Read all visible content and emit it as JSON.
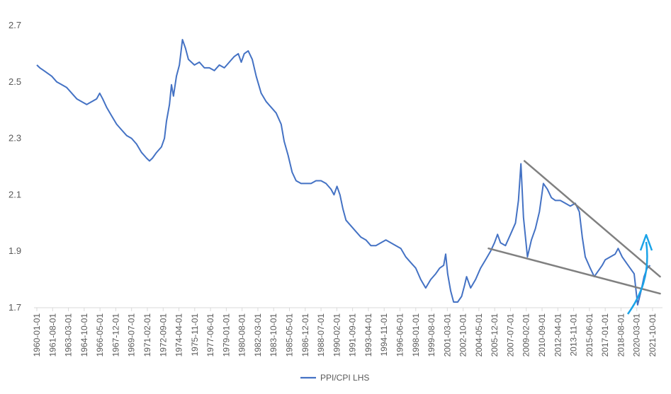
{
  "chart_data": {
    "type": "line",
    "title": "",
    "xlabel": "",
    "ylabel": "",
    "ylim": [
      1.7,
      2.7
    ],
    "yticks": [
      1.7,
      1.9,
      2.1,
      2.3,
      2.5,
      2.7
    ],
    "ytick_labels": [
      "1.7",
      "1.9",
      "2.1",
      "2.3",
      "2.5",
      "2.7"
    ],
    "x_tick_labels": [
      "1960-01-01",
      "1961-08-01",
      "1963-03-01",
      "1964-10-01",
      "1966-05-01",
      "1967-12-01",
      "1969-07-01",
      "1971-02-01",
      "1972-09-01",
      "1974-04-01",
      "1975-11-01",
      "1977-06-01",
      "1979-01-01",
      "1980-08-01",
      "1982-03-01",
      "1983-10-01",
      "1985-05-01",
      "1986-12-01",
      "1988-07-01",
      "1990-02-01",
      "1991-09-01",
      "1993-04-01",
      "1994-11-01",
      "1996-06-01",
      "1998-01-01",
      "1999-08-01",
      "2001-03-01",
      "2002-10-01",
      "2004-05-01",
      "2005-12-01",
      "2007-07-01",
      "2009-02-01",
      "2010-09-01",
      "2012-04-01",
      "2013-11-01",
      "2015-06-01",
      "2017-01-01",
      "2018-08-01",
      "2020-03-01",
      "2021-10-01"
    ],
    "grid": false,
    "legend_position": "bottom",
    "series": [
      {
        "name": "PPI/CPI LHS",
        "color": "#4472c4",
        "points": [
          [
            1960.0,
            2.56
          ],
          [
            1960.3,
            2.55
          ],
          [
            1960.7,
            2.54
          ],
          [
            1961.1,
            2.53
          ],
          [
            1961.5,
            2.52
          ],
          [
            1962.0,
            2.5
          ],
          [
            1962.5,
            2.49
          ],
          [
            1963.0,
            2.48
          ],
          [
            1963.5,
            2.46
          ],
          [
            1964.0,
            2.44
          ],
          [
            1964.5,
            2.43
          ],
          [
            1965.0,
            2.42
          ],
          [
            1965.5,
            2.43
          ],
          [
            1966.0,
            2.44
          ],
          [
            1966.3,
            2.46
          ],
          [
            1966.6,
            2.44
          ],
          [
            1967.0,
            2.41
          ],
          [
            1967.5,
            2.38
          ],
          [
            1968.0,
            2.35
          ],
          [
            1968.5,
            2.33
          ],
          [
            1969.0,
            2.31
          ],
          [
            1969.5,
            2.3
          ],
          [
            1970.0,
            2.28
          ],
          [
            1970.5,
            2.25
          ],
          [
            1971.0,
            2.23
          ],
          [
            1971.3,
            2.22
          ],
          [
            1971.6,
            2.23
          ],
          [
            1972.0,
            2.25
          ],
          [
            1972.5,
            2.27
          ],
          [
            1972.8,
            2.3
          ],
          [
            1973.0,
            2.36
          ],
          [
            1973.3,
            2.42
          ],
          [
            1973.5,
            2.49
          ],
          [
            1973.7,
            2.45
          ],
          [
            1974.0,
            2.52
          ],
          [
            1974.3,
            2.56
          ],
          [
            1974.6,
            2.65
          ],
          [
            1974.9,
            2.62
          ],
          [
            1975.2,
            2.58
          ],
          [
            1975.8,
            2.56
          ],
          [
            1976.3,
            2.57
          ],
          [
            1976.8,
            2.55
          ],
          [
            1977.3,
            2.55
          ],
          [
            1977.8,
            2.54
          ],
          [
            1978.3,
            2.56
          ],
          [
            1978.8,
            2.55
          ],
          [
            1979.3,
            2.57
          ],
          [
            1979.8,
            2.59
          ],
          [
            1980.2,
            2.6
          ],
          [
            1980.5,
            2.57
          ],
          [
            1980.8,
            2.6
          ],
          [
            1981.2,
            2.61
          ],
          [
            1981.6,
            2.58
          ],
          [
            1982.0,
            2.52
          ],
          [
            1982.5,
            2.46
          ],
          [
            1983.0,
            2.43
          ],
          [
            1983.5,
            2.41
          ],
          [
            1984.0,
            2.39
          ],
          [
            1984.5,
            2.35
          ],
          [
            1984.8,
            2.29
          ],
          [
            1985.2,
            2.24
          ],
          [
            1985.6,
            2.18
          ],
          [
            1986.0,
            2.15
          ],
          [
            1986.5,
            2.14
          ],
          [
            1987.0,
            2.14
          ],
          [
            1987.5,
            2.14
          ],
          [
            1988.0,
            2.15
          ],
          [
            1988.5,
            2.15
          ],
          [
            1989.0,
            2.14
          ],
          [
            1989.5,
            2.12
          ],
          [
            1989.8,
            2.1
          ],
          [
            1990.1,
            2.13
          ],
          [
            1990.4,
            2.1
          ],
          [
            1990.7,
            2.05
          ],
          [
            1991.0,
            2.01
          ],
          [
            1991.5,
            1.99
          ],
          [
            1992.0,
            1.97
          ],
          [
            1992.5,
            1.95
          ],
          [
            1993.0,
            1.94
          ],
          [
            1993.5,
            1.92
          ],
          [
            1994.0,
            1.92
          ],
          [
            1994.5,
            1.93
          ],
          [
            1995.0,
            1.94
          ],
          [
            1995.5,
            1.93
          ],
          [
            1996.0,
            1.92
          ],
          [
            1996.5,
            1.91
          ],
          [
            1997.0,
            1.88
          ],
          [
            1997.5,
            1.86
          ],
          [
            1998.0,
            1.84
          ],
          [
            1998.5,
            1.8
          ],
          [
            1999.0,
            1.77
          ],
          [
            1999.5,
            1.8
          ],
          [
            2000.0,
            1.82
          ],
          [
            2000.4,
            1.84
          ],
          [
            2000.8,
            1.85
          ],
          [
            2001.0,
            1.89
          ],
          [
            2001.2,
            1.82
          ],
          [
            2001.5,
            1.76
          ],
          [
            2001.8,
            1.72
          ],
          [
            2002.2,
            1.72
          ],
          [
            2002.6,
            1.74
          ],
          [
            2002.9,
            1.78
          ],
          [
            2003.1,
            1.81
          ],
          [
            2003.5,
            1.77
          ],
          [
            2004.0,
            1.8
          ],
          [
            2004.5,
            1.84
          ],
          [
            2005.0,
            1.87
          ],
          [
            2005.5,
            1.9
          ],
          [
            2005.9,
            1.93
          ],
          [
            2006.2,
            1.96
          ],
          [
            2006.5,
            1.93
          ],
          [
            2007.0,
            1.92
          ],
          [
            2007.5,
            1.96
          ],
          [
            2008.0,
            2.0
          ],
          [
            2008.3,
            2.08
          ],
          [
            2008.55,
            2.21
          ],
          [
            2008.8,
            2.02
          ],
          [
            2009.2,
            1.88
          ],
          [
            2009.6,
            1.94
          ],
          [
            2010.0,
            1.98
          ],
          [
            2010.4,
            2.04
          ],
          [
            2010.8,
            2.14
          ],
          [
            2011.2,
            2.12
          ],
          [
            2011.6,
            2.09
          ],
          [
            2012.0,
            2.08
          ],
          [
            2012.5,
            2.08
          ],
          [
            2013.0,
            2.07
          ],
          [
            2013.5,
            2.06
          ],
          [
            2014.0,
            2.07
          ],
          [
            2014.4,
            2.04
          ],
          [
            2014.7,
            1.95
          ],
          [
            2015.0,
            1.88
          ],
          [
            2015.5,
            1.84
          ],
          [
            2015.9,
            1.81
          ],
          [
            2016.3,
            1.83
          ],
          [
            2016.7,
            1.85
          ],
          [
            2017.0,
            1.87
          ],
          [
            2017.5,
            1.88
          ],
          [
            2018.0,
            1.89
          ],
          [
            2018.3,
            1.91
          ],
          [
            2018.7,
            1.88
          ],
          [
            2019.1,
            1.86
          ],
          [
            2019.5,
            1.84
          ],
          [
            2019.9,
            1.82
          ],
          [
            2020.25,
            1.71
          ],
          [
            2020.6,
            1.76
          ],
          [
            2020.9,
            1.81
          ],
          [
            2021.2,
            1.84
          ],
          [
            2021.5,
            1.85
          ]
        ]
      }
    ],
    "annotations": [
      {
        "type": "trendline",
        "color": "#808080",
        "from": [
          2008.9,
          2.22
        ],
        "to": [
          2022.5,
          1.81
        ]
      },
      {
        "type": "trendline",
        "color": "#808080",
        "from": [
          2005.3,
          1.91
        ],
        "to": [
          2022.5,
          1.75
        ]
      },
      {
        "type": "arrow",
        "color": "#1aa3e8",
        "direction": "up"
      }
    ]
  }
}
